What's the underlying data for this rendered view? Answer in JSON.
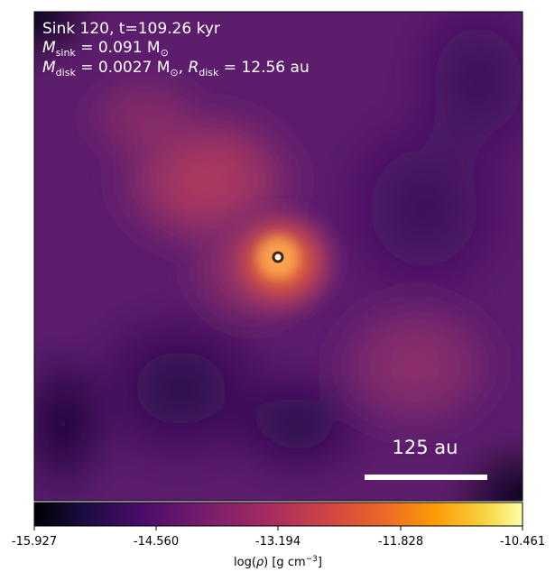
{
  "panel": {
    "title": "Sink 120, t=109.26 kyr",
    "m_sink_label": "M",
    "m_sink_sub": "sink",
    "m_sink_value": " = 0.091 M",
    "m_sun_sub": "⊙",
    "m_disk_label": "M",
    "m_disk_sub": "disk",
    "m_disk_value": " = 0.0027 M",
    "m_disk_sun_sub": "⊙",
    "r_disk_sep": ", ",
    "r_disk_label": "R",
    "r_disk_sub": "disk",
    "r_disk_value": " = 12.56 au"
  },
  "scale_bar": {
    "label": "125 au",
    "color": "#ffffff"
  },
  "sink_marker": {
    "ring_color": "#4a2306",
    "fill_color": "#ffffff"
  },
  "colorbar": {
    "colormap": "inferno-like",
    "ticks": [
      "-15.927",
      "-14.560",
      "-13.194",
      "-11.828",
      "-10.461"
    ],
    "label_main": "log(",
    "label_rho": "ρ",
    "label_unit": ") [g cm",
    "label_exp": "−3",
    "label_close": "]"
  }
}
